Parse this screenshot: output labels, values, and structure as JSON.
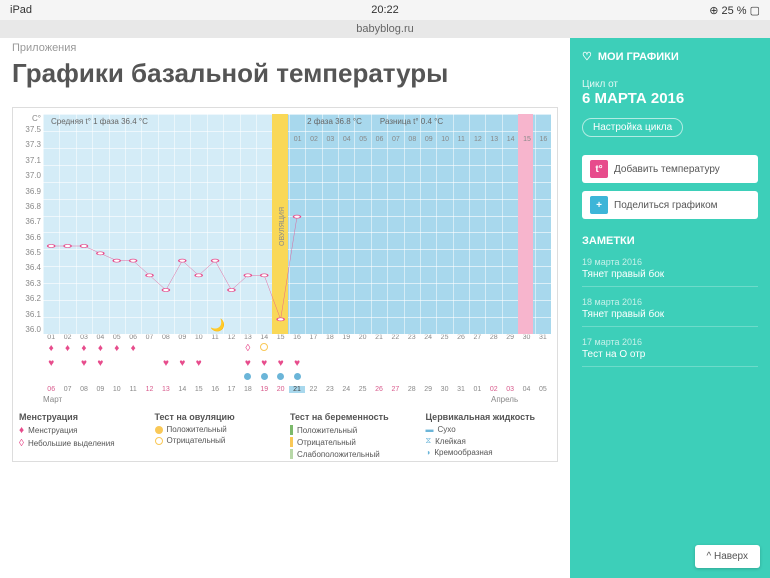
{
  "status": {
    "device": "iPad",
    "time": "20:22",
    "battery": "25 %",
    "url": "babyblog.ru"
  },
  "breadcrumb": "Приложения",
  "title": "Графики базальной температуры",
  "chart": {
    "y_unit": "C°",
    "y_ticks": [
      "37.5",
      "37.3",
      "37.1",
      "37.0",
      "36.9",
      "36.8",
      "36.7",
      "36.6",
      "36.5",
      "36.4",
      "36.3",
      "36.2",
      "36.1",
      "36.0"
    ],
    "info": {
      "phase1": "Средняя t° 1 фаза 36.4 °C",
      "phase2": "2 фаза 36.8 °C",
      "diff": "Разница t° 0.4 °C"
    },
    "ov_label": "ОВУЛЯЦИЯ",
    "days": [
      "01",
      "02",
      "03",
      "04",
      "05",
      "06",
      "07",
      "08",
      "09",
      "10",
      "11",
      "12",
      "13",
      "14",
      "15",
      "16",
      "17",
      "18",
      "19",
      "20",
      "21",
      "22",
      "23",
      "24",
      "25",
      "26",
      "27",
      "28",
      "29",
      "30",
      "31"
    ],
    "line_points": [
      [
        0,
        36.6
      ],
      [
        1,
        36.6
      ],
      [
        2,
        36.6
      ],
      [
        3,
        36.55
      ],
      [
        4,
        36.5
      ],
      [
        5,
        36.5
      ],
      [
        6,
        36.4
      ],
      [
        7,
        36.3
      ],
      [
        8,
        36.5
      ],
      [
        9,
        36.4
      ],
      [
        10,
        36.5
      ],
      [
        11,
        36.3
      ],
      [
        12,
        36.4
      ],
      [
        13,
        36.4
      ],
      [
        14,
        36.1
      ],
      [
        15,
        36.8
      ]
    ],
    "line_color": "#e74c8c",
    "ymin": 36.0,
    "ymax": 37.5,
    "ov_day": 14,
    "pink_day": 29,
    "moon_day": 10,
    "top_nums": [
      "01",
      "02",
      "03",
      "04",
      "05",
      "06",
      "07",
      "08",
      "09",
      "10",
      "11",
      "12",
      "13",
      "14",
      "15",
      "16"
    ],
    "drops": [
      0,
      1,
      2,
      3,
      4,
      5
    ],
    "drop_outline": [
      12
    ],
    "circ_yellow": [
      13
    ],
    "hearts": [
      0,
      2,
      3,
      7,
      8,
      9,
      12,
      13,
      14,
      15
    ],
    "blue_dots": [
      12,
      13,
      14,
      15
    ],
    "cal": [
      "06",
      "07",
      "08",
      "09",
      "10",
      "11",
      "12",
      "13",
      "14",
      "15",
      "16",
      "17",
      "18",
      "19",
      "20",
      "21",
      "22",
      "23",
      "24",
      "25",
      "26",
      "27",
      "28",
      "29",
      "30",
      "31",
      "01",
      "02",
      "03",
      "04",
      "05"
    ],
    "cal_weekend": [
      0,
      6,
      7,
      13,
      14,
      20,
      21,
      27,
      28
    ],
    "cal_highlight": 15,
    "month1": "Март",
    "month2": "Апрель"
  },
  "legend": {
    "c1": {
      "title": "Менструация",
      "i1": "Менструация",
      "i2": "Небольшие выделения"
    },
    "c2": {
      "title": "Тест на овуляцию",
      "i1": "Положительный",
      "i2": "Отрицательный"
    },
    "c3": {
      "title": "Тест на беременность",
      "i1": "Положительный",
      "i2": "Отрицательный",
      "i3": "Слабоположительный"
    },
    "c4": {
      "title": "Цервикальная жидкость",
      "i1": "Сухо",
      "i2": "Клейкая",
      "i3": "Кремообразная"
    }
  },
  "sidebar": {
    "title": "МОИ ГРАФИКИ",
    "cycle_label": "Цикл от",
    "cycle_date": "6 МАРТА 2016",
    "settings": "Настройка цикла",
    "add_temp": "Добавить температуру",
    "share": "Поделиться графиком",
    "notes_title": "ЗАМЕТКИ",
    "notes": [
      {
        "date": "19 марта 2016",
        "text": "Тянет правый бок"
      },
      {
        "date": "18 марта 2016",
        "text": "Тянет правый бок"
      },
      {
        "date": "17 марта 2016",
        "text": "Тест на О отр"
      }
    ]
  },
  "top_btn": "Наверх",
  "colors": {
    "pink": "#e74c8c",
    "teal": "#3dcfb9",
    "blue": "#6bb5d8",
    "yellow": "#f9c857",
    "green": "#7cb96b"
  }
}
